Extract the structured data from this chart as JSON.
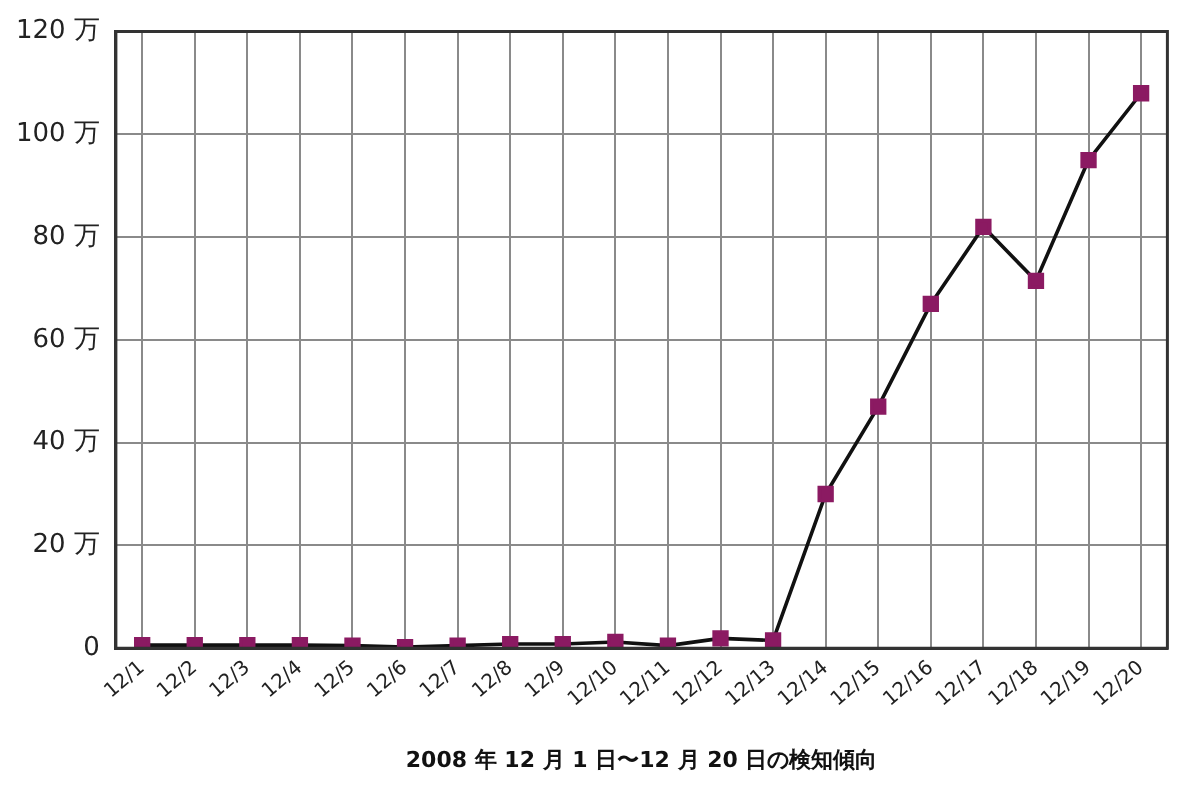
{
  "chart_data": {
    "type": "line",
    "xlabel": "2008 年 12 月 1 日〜12 月 20 日の検知傾向",
    "categories": [
      "12/1",
      "12/2",
      "12/3",
      "12/4",
      "12/5",
      "12/6",
      "12/7",
      "12/8",
      "12/9",
      "12/10",
      "12/11",
      "12/12",
      "12/13",
      "12/14",
      "12/15",
      "12/16",
      "12/17",
      "12/18",
      "12/19",
      "12/20"
    ],
    "series": [
      {
        "color": "#8b1a62",
        "values": [
          0.6,
          0.6,
          0.6,
          0.6,
          0.5,
          0.2,
          0.5,
          0.8,
          0.8,
          1.2,
          0.5,
          1.9,
          1.5,
          30,
          47,
          67,
          82,
          71.5,
          95,
          108
        ]
      }
    ],
    "ylim": [
      0,
      120
    ],
    "yticks": [
      0,
      {
        "value": 20,
        "label": "20 万"
      },
      {
        "value": 40,
        "label": "40 万"
      },
      {
        "value": 60,
        "label": "60 万"
      },
      {
        "value": 80,
        "label": "80 万"
      },
      {
        "value": 100,
        "label": "100 万"
      },
      {
        "value": 120,
        "label": "120 万"
      }
    ],
    "grid": true,
    "marker": "square",
    "line_style": "solid"
  }
}
